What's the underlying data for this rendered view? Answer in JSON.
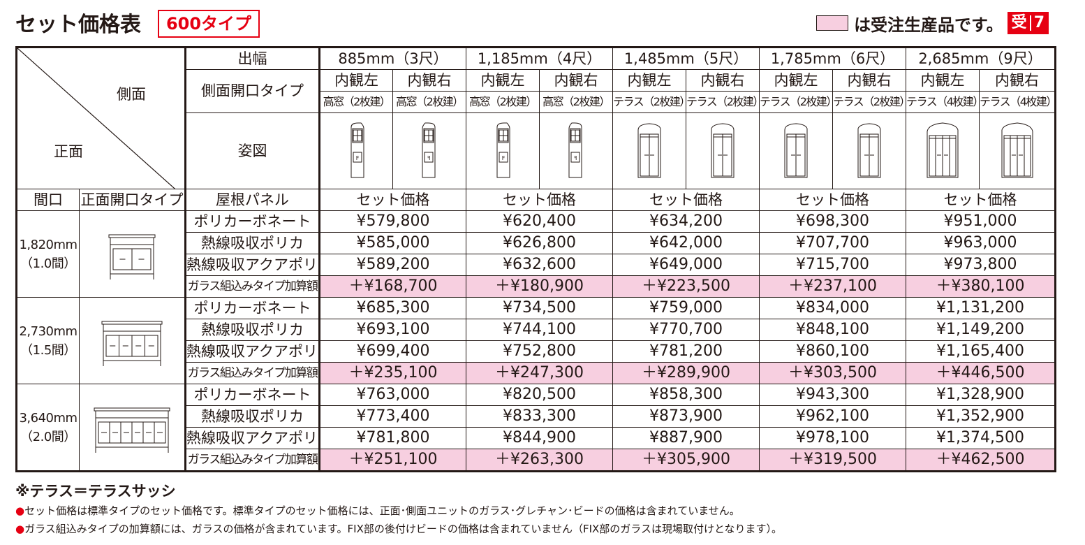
{
  "header": {
    "title": "セット価格表",
    "type_badge": "600タイプ",
    "legend_text": "は受注生産品です。",
    "legend_badge_a": "受",
    "legend_badge_b": "7"
  },
  "colors": {
    "accent": "#e60012",
    "made_to_order": "#f7cfe0",
    "ink": "#231815"
  },
  "table": {
    "corner_side_label": "側面",
    "corner_front_label": "正面",
    "label_width": "出幅",
    "label_side_type": "側面開口タイプ",
    "label_figure": "姿図",
    "label_maguchi": "間口",
    "label_front_type": "正面開口タイプ",
    "label_roof": "屋根パネル",
    "widths": [
      {
        "label": "885mm（3尺）",
        "open": [
          "内観左",
          "内観右"
        ],
        "style": [
          "高窓（2枚建）",
          "高窓（2枚建）"
        ],
        "set_label": "セット価格"
      },
      {
        "label": "1,185mm（4尺）",
        "open": [
          "内観左",
          "内観右"
        ],
        "style": [
          "高窓（2枚建）",
          "高窓（2枚建）"
        ],
        "set_label": "セット価格"
      },
      {
        "label": "1,485mm（5尺）",
        "open": [
          "内観左",
          "内観右"
        ],
        "style": [
          "テラス（2枚建）",
          "テラス（2枚建）"
        ],
        "set_label": "セット価格"
      },
      {
        "label": "1,785mm（6尺）",
        "open": [
          "内観左",
          "内観右"
        ],
        "style": [
          "テラス（2枚建）",
          "テラス（2枚建）"
        ],
        "set_label": "セット価格"
      },
      {
        "label": "2,685mm（9尺）",
        "open": [
          "内観左",
          "内観右"
        ],
        "style": [
          "テラス（4枚建）",
          "テラス（4枚建）"
        ],
        "set_label": "セット価格"
      }
    ],
    "fig_mark": "F",
    "groups": [
      {
        "width_mm": "1,820mm",
        "width_ken": "（1.0間）",
        "rows": [
          {
            "roof": "ポリカーボネート",
            "prices": [
              "¥579,800",
              "¥620,400",
              "¥634,200",
              "¥698,300",
              "¥951,000"
            ]
          },
          {
            "roof": "熱線吸収ポリカ",
            "prices": [
              "¥585,000",
              "¥626,800",
              "¥642,000",
              "¥707,700",
              "¥963,000"
            ]
          },
          {
            "roof": "熱線吸収アクアポリカ",
            "prices": [
              "¥589,200",
              "¥632,600",
              "¥649,000",
              "¥715,700",
              "¥973,800"
            ]
          },
          {
            "roof": "ガラス組込みタイプ加算額",
            "prices": [
              "＋¥168,700",
              "＋¥180,900",
              "＋¥223,500",
              "＋¥237,100",
              "＋¥380,100"
            ]
          }
        ]
      },
      {
        "width_mm": "2,730mm",
        "width_ken": "（1.5間）",
        "rows": [
          {
            "roof": "ポリカーボネート",
            "prices": [
              "¥685,300",
              "¥734,500",
              "¥759,000",
              "¥834,000",
              "¥1,131,200"
            ]
          },
          {
            "roof": "熱線吸収ポリカ",
            "prices": [
              "¥693,100",
              "¥744,100",
              "¥770,700",
              "¥848,100",
              "¥1,149,200"
            ]
          },
          {
            "roof": "熱線吸収アクアポリカ",
            "prices": [
              "¥699,400",
              "¥752,800",
              "¥781,200",
              "¥860,100",
              "¥1,165,400"
            ]
          },
          {
            "roof": "ガラス組込みタイプ加算額",
            "prices": [
              "＋¥235,100",
              "＋¥247,300",
              "＋¥289,900",
              "＋¥303,500",
              "＋¥446,500"
            ]
          }
        ]
      },
      {
        "width_mm": "3,640mm",
        "width_ken": "（2.0間）",
        "rows": [
          {
            "roof": "ポリカーボネート",
            "prices": [
              "¥763,000",
              "¥820,500",
              "¥858,300",
              "¥943,300",
              "¥1,328,900"
            ]
          },
          {
            "roof": "熱線吸収ポリカ",
            "prices": [
              "¥773,400",
              "¥833,300",
              "¥873,900",
              "¥962,100",
              "¥1,352,900"
            ]
          },
          {
            "roof": "熱線吸収アクアポリカ",
            "prices": [
              "¥781,800",
              "¥844,900",
              "¥887,900",
              "¥978,100",
              "¥1,374,500"
            ]
          },
          {
            "roof": "ガラス組込みタイプ加算額",
            "prices": [
              "＋¥251,100",
              "＋¥263,300",
              "＋¥305,900",
              "＋¥319,500",
              "＋¥462,500"
            ]
          }
        ]
      }
    ]
  },
  "notes": {
    "terrace": "※テラス＝テラスサッシ",
    "bullet": "●",
    "note1": "セット価格は標準タイプのセット価格です。標準タイプのセット価格には、正面･側面ユニットのガラス･グレチャン･ビードの価格は含まれていません。",
    "note2": "ガラス組込みタイプの加算額には、ガラスの価格が含まれています。FIX部の後付けビードの価格は含まれていません（FIX部のガラスは現場取付けとなります）。"
  }
}
